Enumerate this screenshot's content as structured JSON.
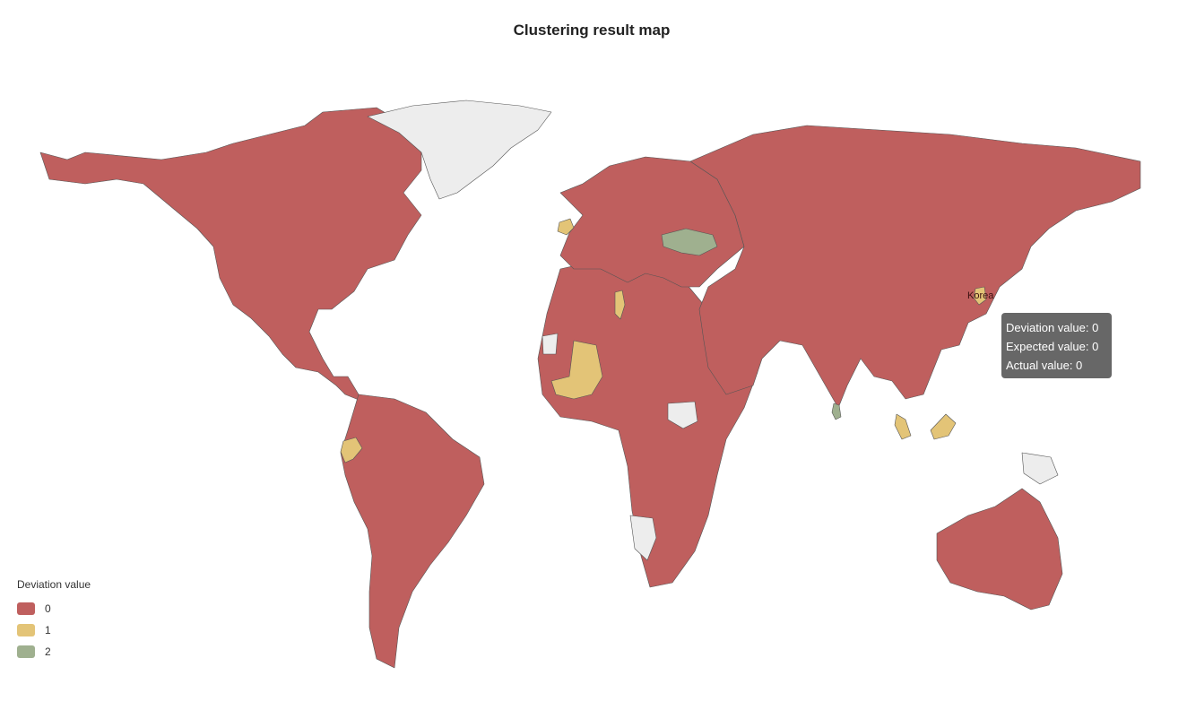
{
  "title": "Clustering result map",
  "colors": {
    "dev0": "#bf5f5e",
    "dev1": "#e3c477",
    "dev2": "#9fb08f",
    "nodata": "#ededed",
    "border": "#555555"
  },
  "legend": {
    "title": "Deviation value",
    "items": [
      {
        "label": "0",
        "color": "#bf5f5e"
      },
      {
        "label": "1",
        "color": "#e3c477"
      },
      {
        "label": "2",
        "color": "#9fb08f"
      }
    ]
  },
  "highlight_label": "Korea",
  "tooltip": {
    "deviation": "Deviation value: 0",
    "expected": "Expected value: 0",
    "actual": "Actual value: 0"
  },
  "regions": [
    {
      "name": "North America",
      "value": 0
    },
    {
      "name": "South America",
      "value": 0
    },
    {
      "name": "Africa",
      "value": 0
    },
    {
      "name": "Europe",
      "value": 0
    },
    {
      "name": "Asia",
      "value": 0
    },
    {
      "name": "Australia",
      "value": 0
    },
    {
      "name": "Greenland",
      "value": null
    },
    {
      "name": "Ireland",
      "value": 1
    },
    {
      "name": "Mali",
      "value": 1
    },
    {
      "name": "Tunisia",
      "value": 1
    },
    {
      "name": "Ecuador",
      "value": 1
    },
    {
      "name": "Malaysia",
      "value": 1
    },
    {
      "name": "Ukraine",
      "value": 2
    },
    {
      "name": "Sri Lanka",
      "value": 2
    },
    {
      "name": "Korea",
      "value": 1
    }
  ]
}
